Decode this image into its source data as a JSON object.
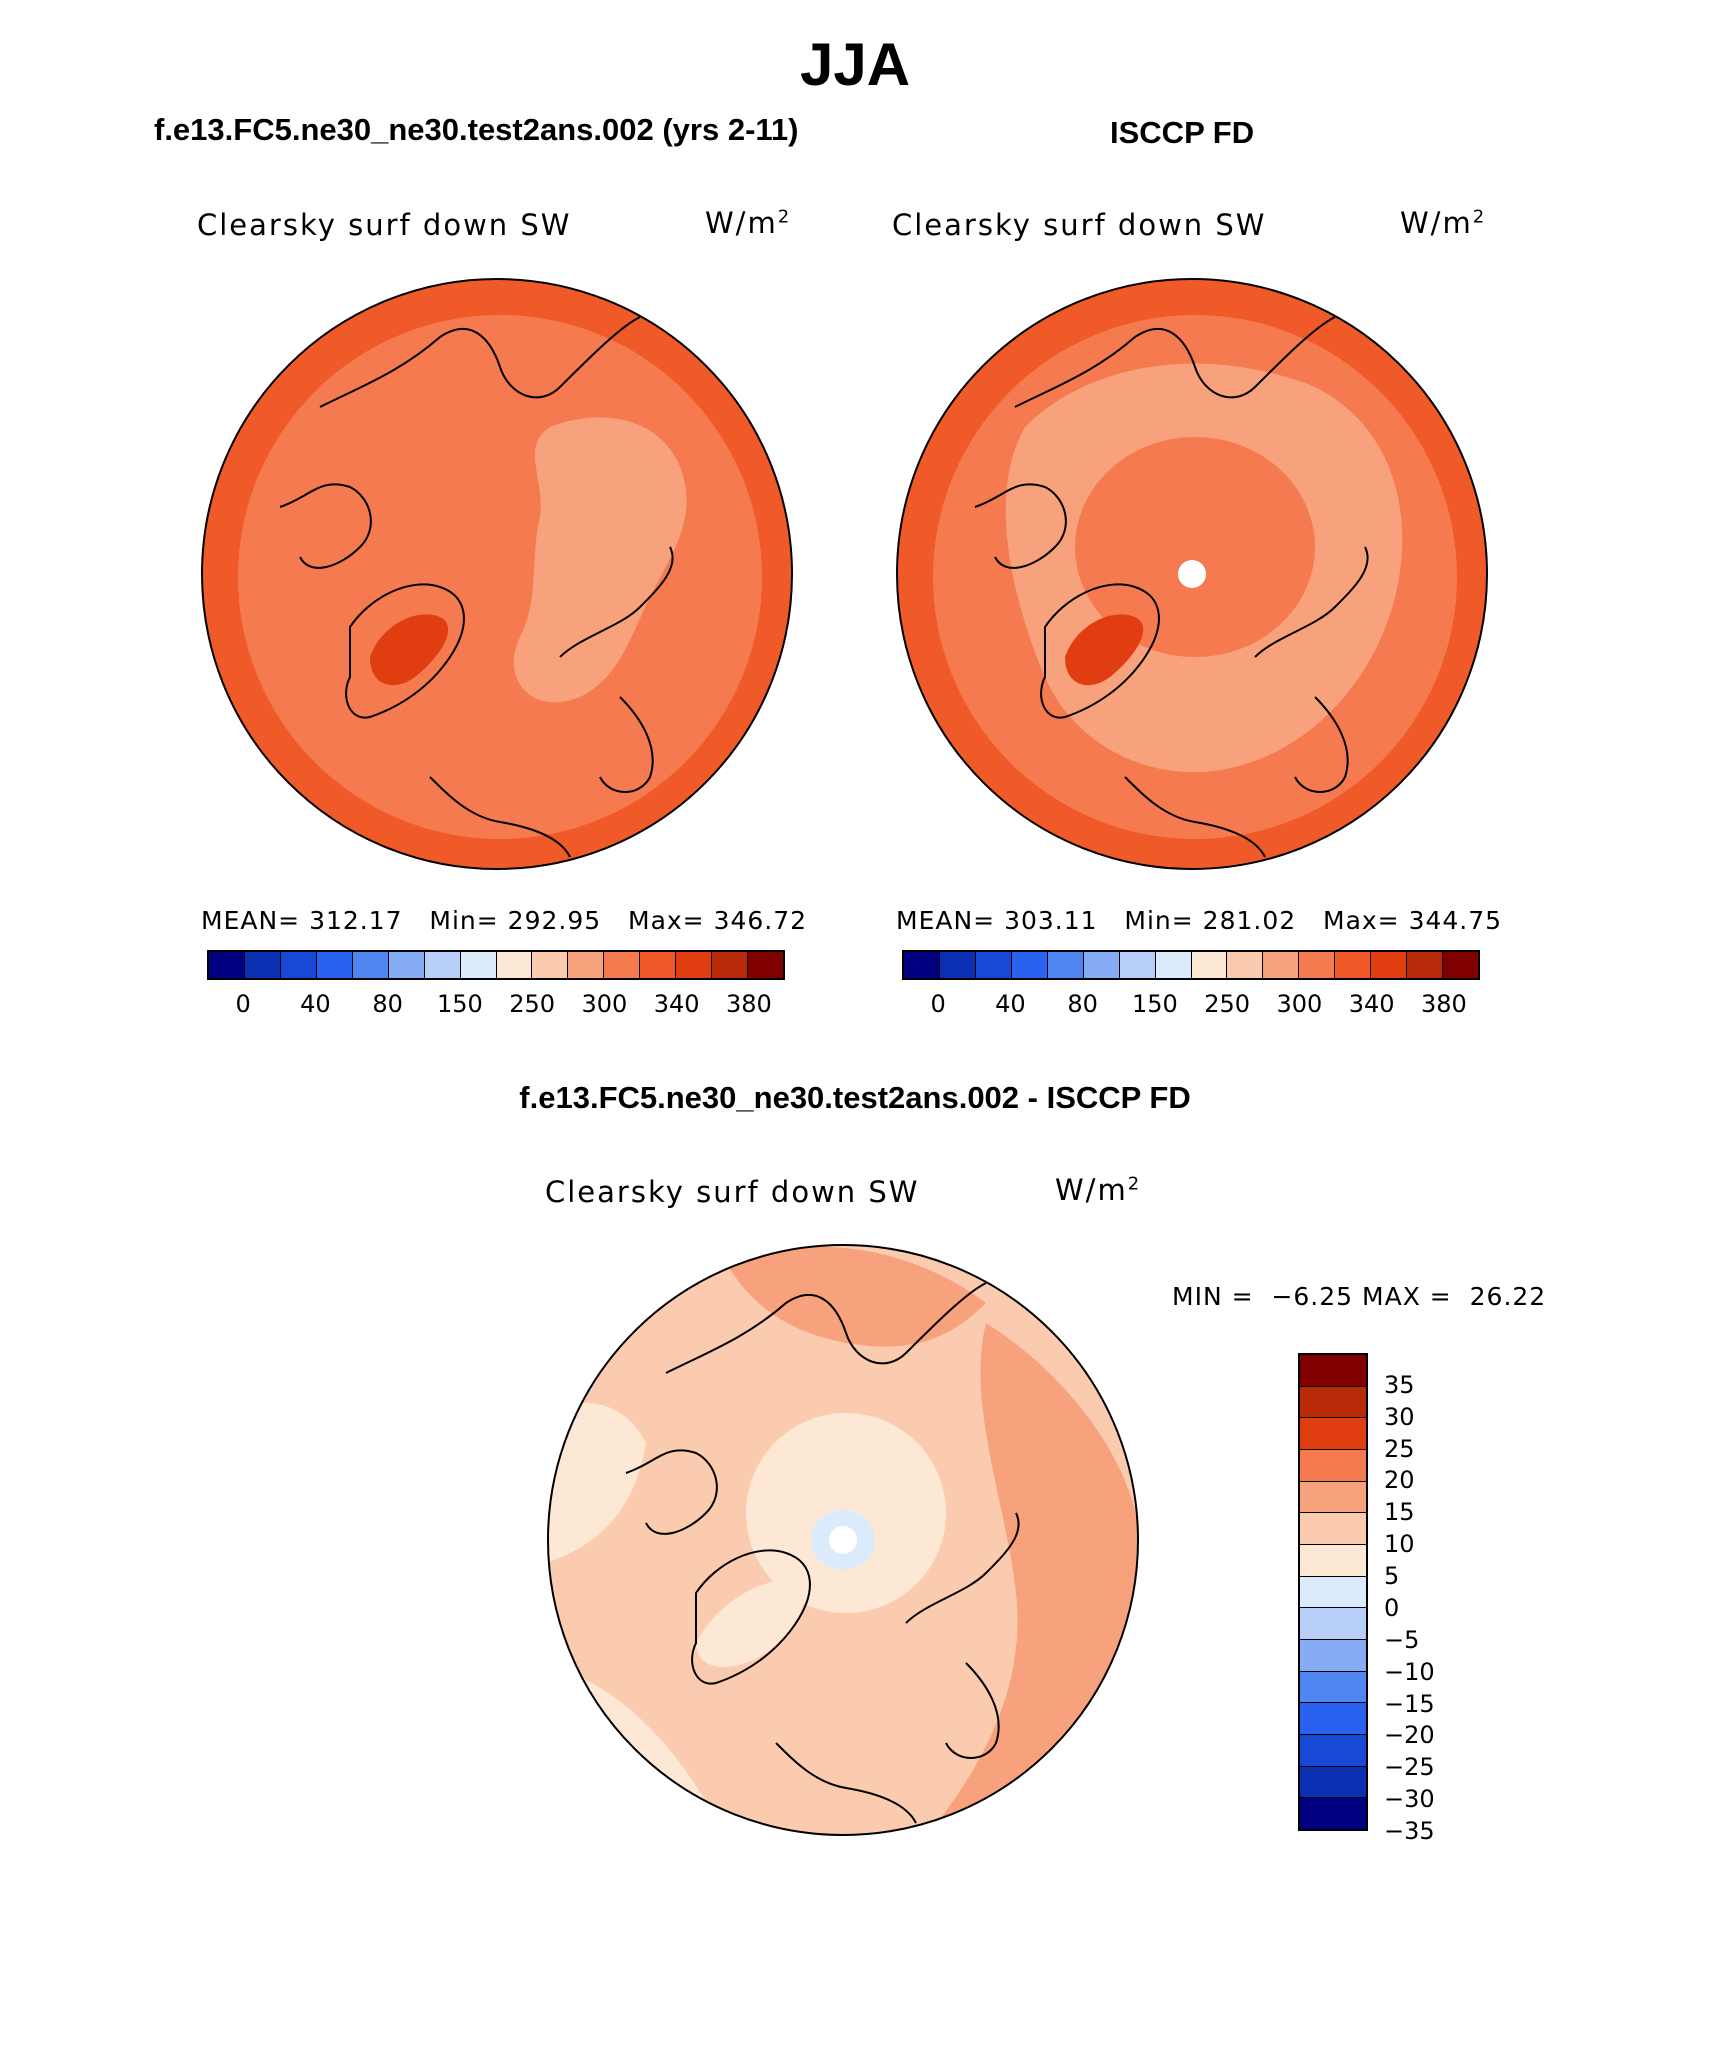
{
  "season": "JJA",
  "colors": {
    "abs_levels": [
      "#000080",
      "#0a2fb0",
      "#1848d6",
      "#2a62f0",
      "#4f86f2",
      "#86acf5",
      "#b7cff8",
      "#dcebfb",
      "#fde8d6",
      "#fbcbb0",
      "#f8a27d",
      "#f57a4f",
      "#f05a28",
      "#e03d10",
      "#b82a08",
      "#800000"
    ],
    "diff_levels": [
      "#000080",
      "#0a2fb0",
      "#1848d6",
      "#2a62f0",
      "#4f86f2",
      "#86acf5",
      "#b7cff8",
      "#dcebfb",
      "#fde8d6",
      "#fbcbb0",
      "#f8a27d",
      "#f57a4f",
      "#e03d10",
      "#b82a08",
      "#800000"
    ]
  },
  "panels": [
    {
      "case": "f.e13.FC5.ne30_ne30.test2ans.002 (yrs 2-11)",
      "variable": "Clearsky surf down SW",
      "units_base": "W/m",
      "units_exp": "2",
      "mean_label": "MEAN=",
      "mean": "312.17",
      "min_label": "Min=",
      "min": "292.95",
      "max_label": "Max=",
      "max": "346.72",
      "ticks": [
        "0",
        "40",
        "80",
        "150",
        "250",
        "300",
        "340",
        "380"
      ],
      "field": {
        "base": "#f57a4f",
        "outer": "#f05a28",
        "inner_light": "#f8a27d",
        "greenland": "#e03d10"
      }
    },
    {
      "case": "ISCCP FD",
      "variable": "Clearsky surf down SW",
      "units_base": "W/m",
      "units_exp": "2",
      "mean_label": "MEAN=",
      "mean": "303.11",
      "min_label": "Min=",
      "min": "281.02",
      "max_label": "Max=",
      "max": "344.75",
      "ticks": [
        "0",
        "40",
        "80",
        "150",
        "250",
        "300",
        "340",
        "380"
      ],
      "field": {
        "base": "#f57a4f",
        "outer": "#f05a28",
        "inner_light": "#f8a27d",
        "greenland": "#e03d10"
      }
    }
  ],
  "difference": {
    "title": "f.e13.FC5.ne30_ne30.test2ans.002 - ISCCP FD",
    "variable": "Clearsky surf down SW",
    "units_base": "W/m",
    "units_exp": "2",
    "min_label": "MIN =",
    "min": "−6.25",
    "max_label": "MAX =",
    "max": "26.22",
    "ticks": [
      "35",
      "30",
      "25",
      "20",
      "15",
      "10",
      "5",
      "0",
      "−5",
      "−10",
      "−15",
      "−20",
      "−25",
      "−30",
      "−35"
    ]
  }
}
